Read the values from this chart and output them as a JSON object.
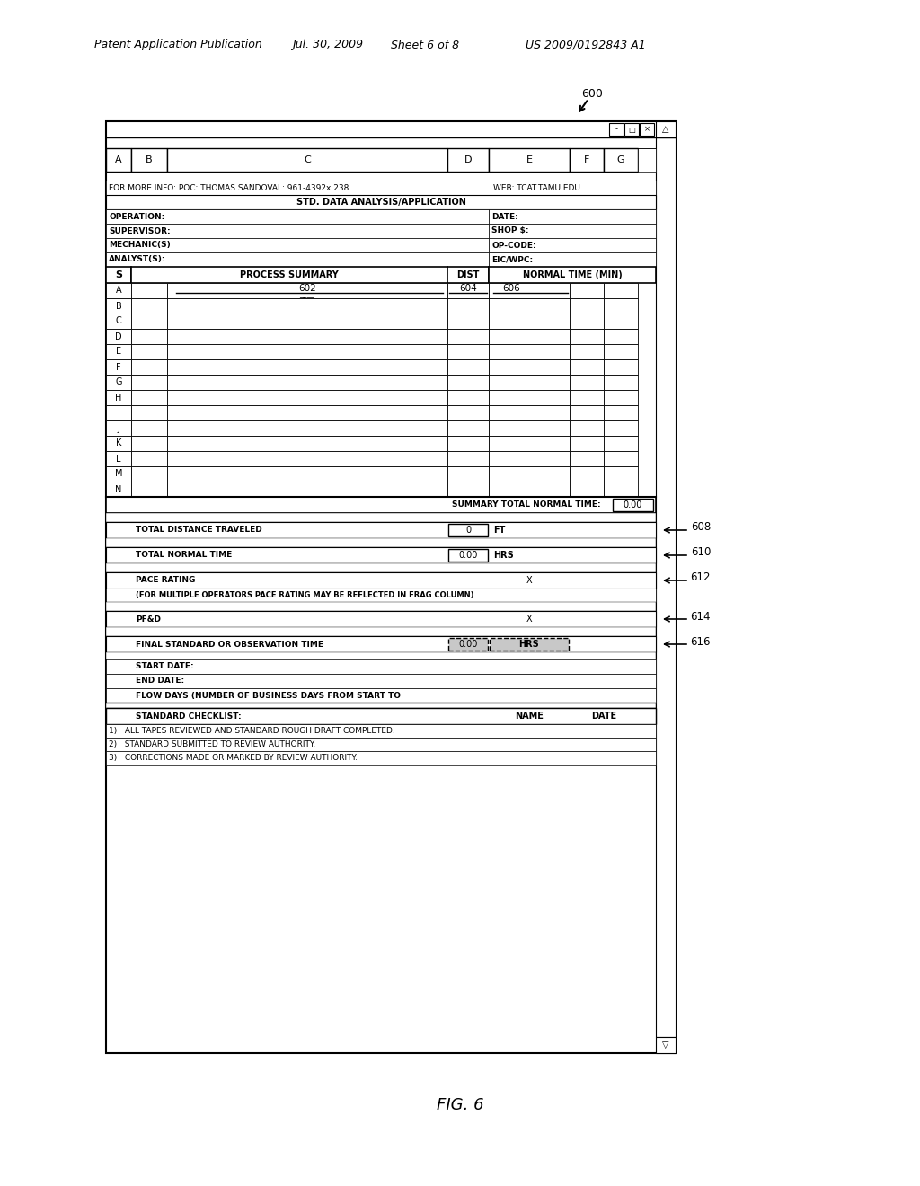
{
  "bg_color": "#ffffff",
  "header_line1": "Patent Application Publication",
  "header_line2": "Jul. 30, 2009",
  "header_line3": "Sheet 6 of 8",
  "header_line4": "US 2009/0192843 A1",
  "fig_label": "FIG. 6",
  "ref_600": "600",
  "title_info": "FOR MORE INFO: POC: THOMAS SANDOVAL: 961-4392x.238",
  "web_info": "WEB: TCAT.TAMU.EDU",
  "std_title": "STD. DATA ANALYSIS/APPLICATION",
  "col_headers": [
    "A",
    "B",
    "C",
    "D",
    "E",
    "F",
    "G"
  ],
  "row_labels": [
    "A",
    "B",
    "C",
    "D",
    "E",
    "F",
    "G",
    "H",
    "I",
    "J",
    "K",
    "L",
    "M",
    "N"
  ],
  "ref_602": "602",
  "ref_604": "604",
  "ref_606": "606",
  "ref_608": "608",
  "ref_610": "610",
  "ref_612": "612",
  "ref_614": "614",
  "ref_616": "616",
  "summary_total_label": "SUMMARY TOTAL NORMAL TIME:",
  "summary_total_value": "0.00",
  "total_distance_label": "TOTAL DISTANCE TRAVELED",
  "total_distance_value": "0",
  "total_distance_unit": "FT",
  "total_normal_label": "TOTAL NORMAL TIME",
  "total_normal_value": "0.00",
  "total_normal_unit": "HRS",
  "pace_rating_label": "PACE RATING",
  "pace_rating_value": "X",
  "pace_note": "(FOR MULTIPLE OPERATORS PACE RATING MAY BE REFLECTED IN FRAG COLUMN)",
  "pfd_label": "PF&D",
  "pfd_value": "X",
  "final_std_label": "FINAL STANDARD OR OBSERVATION TIME",
  "final_std_value": "0.00",
  "final_std_unit": "HRS",
  "start_date_label": "START DATE:",
  "end_date_label": "END DATE:",
  "flow_days_label": "FLOW DAYS (NUMBER OF BUSINESS DAYS FROM START TO",
  "checklist_label": "STANDARD CHECKLIST:",
  "checklist_name": "NAME",
  "checklist_date": "DATE",
  "check_items": [
    "1)   ALL TAPES REVIEWED AND STANDARD ROUGH DRAFT COMPLETED.",
    "2)   STANDARD SUBMITTED TO REVIEW AUTHORITY.",
    "3)   CORRECTIONS MADE OR MARKED BY REVIEW AUTHORITY."
  ],
  "info_labels": [
    "OPERATION:",
    "SUPERVISOR:",
    "MECHANIC(S)",
    "ANALYST(S):"
  ],
  "right_labels": [
    "DATE:",
    "SHOP $:",
    "OP-CODE:",
    "EIC/WPC:"
  ],
  "process_summary_label": "PROCESS SUMMARY",
  "dist_label": "DIST",
  "normal_time_label": "NORMAL TIME (MIN)"
}
